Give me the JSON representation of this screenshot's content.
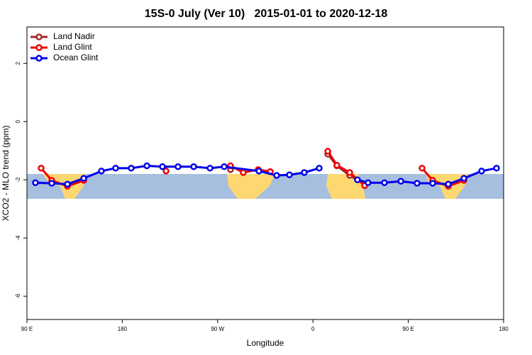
{
  "chart_data": {
    "type": "line",
    "title": "15S-0 July (Ver 10)   2015-01-01 to 2020-12-18",
    "x_label": "Longitude",
    "y_label": "XCO2 - MLO trend (ppm)",
    "xlim": [
      90,
      540
    ],
    "ylim": [
      -6.8,
      3.25
    ],
    "xticks": [
      {
        "value": 90,
        "label": "90 E"
      },
      180,
      {
        "value": 270,
        "label": "90 W"
      },
      {
        "value": 360,
        "label": "0"
      },
      {
        "value": 450,
        "label": "90 E"
      },
      {
        "value": 540,
        "label": "180"
      }
    ],
    "yticks": [
      -6,
      -4,
      -2,
      0,
      2
    ],
    "legend": "top-left",
    "series": [
      {
        "name": "Land Nadir",
        "color": "#a52a2a",
        "x": [
          282.2,
          null,
          374,
          382.6,
          394.7,
          408.8
        ],
        "values": [
          -1.65,
          null,
          -1.12,
          -1.52,
          -1.85,
          -2.17
        ]
      },
      {
        "name": "Land Glint",
        "color": "#ee0000",
        "x": [
          103.4,
          113.4,
          128.2,
          143.6,
          null,
          221.3,
          null,
          282.2,
          294.2,
          308.3,
          319.7,
          null,
          374,
          382.6,
          394.7,
          408.8,
          null,
          463,
          473,
          487.8,
          502.5
        ],
        "values": [
          -1.6,
          -2.02,
          -2.22,
          -2.02,
          null,
          -1.7,
          null,
          -1.52,
          -1.75,
          -1.65,
          -1.72,
          null,
          -1.02,
          -1.5,
          -1.75,
          -2.2,
          null,
          -1.6,
          -2.02,
          -2.22,
          -2.02
        ]
      },
      {
        "name": "Ocean Glint",
        "color": "#0000ee",
        "x": [
          98,
          113.4,
          128.2,
          143.6,
          160.3,
          173.7,
          188.4,
          203.2,
          217.9,
          232.6,
          247.4,
          262.8,
          276.2,
          309,
          325.7,
          337.8,
          351.8,
          365.9,
          null,
          402,
          412,
          427.5,
          443,
          458.3,
          473,
          487.8,
          502.5,
          519.2,
          533.3
        ],
        "values": [
          -2.1,
          -2.12,
          -2.15,
          -1.95,
          -1.7,
          -1.6,
          -1.6,
          -1.52,
          -1.55,
          -1.55,
          -1.55,
          -1.6,
          -1.55,
          -1.7,
          -1.85,
          -1.83,
          -1.75,
          -1.6,
          null,
          -2.0,
          -2.1,
          -2.1,
          -2.05,
          -2.12,
          -2.12,
          -2.15,
          -1.95,
          -1.7,
          -1.6
        ]
      }
    ]
  }
}
